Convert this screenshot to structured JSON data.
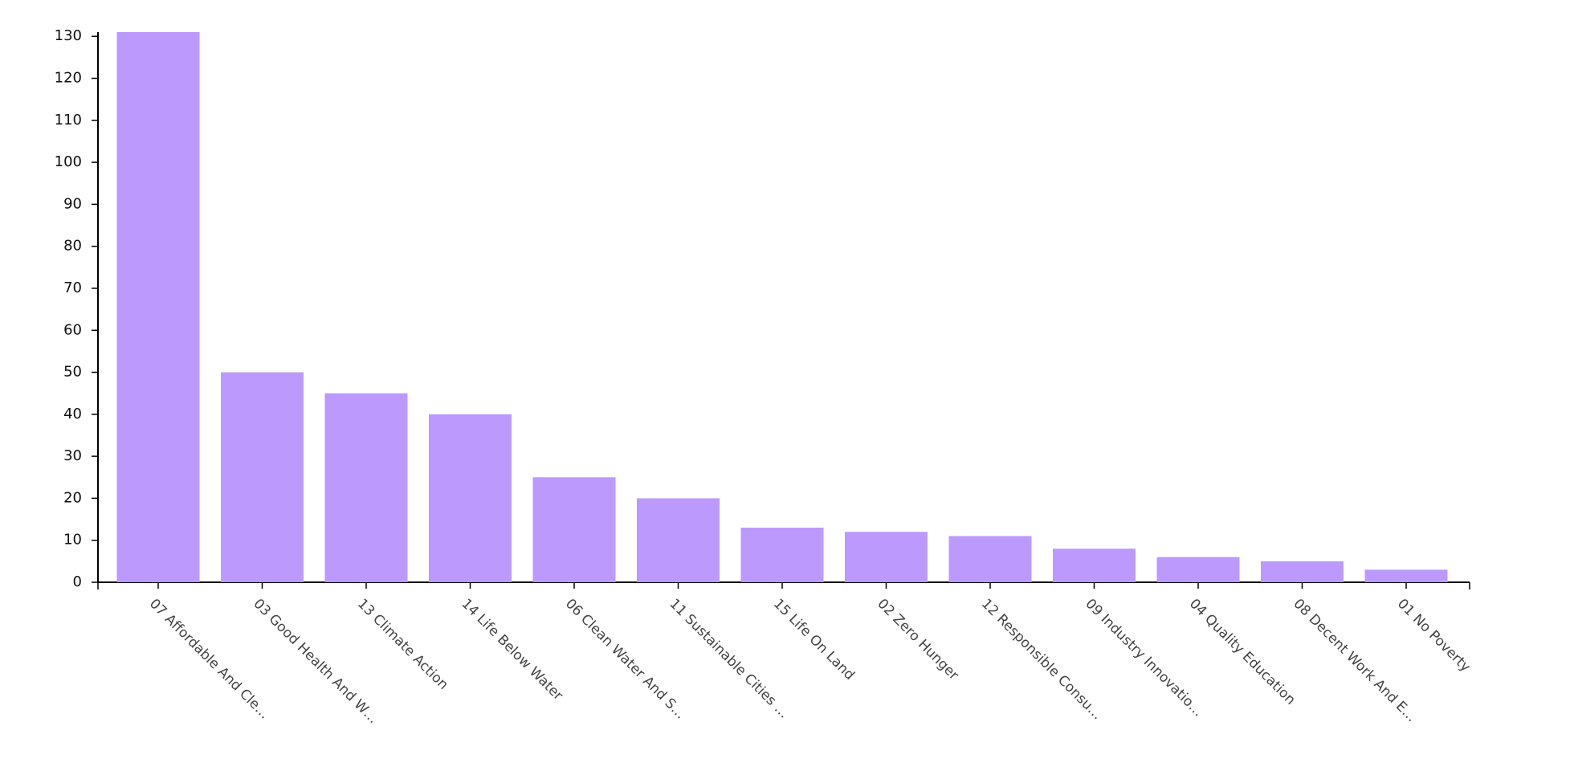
{
  "chart_data": {
    "type": "bar",
    "categories": [
      "07 Affordable And Cle…",
      "03 Good Health And W…",
      "13 Climate Action",
      "14 Life Below Water",
      "06 Clean Water And S…",
      "11 Sustainable Cities …",
      "15 Life On Land",
      "02 Zero Hunger",
      "12 Responsible Consu…",
      "09 Industry Innovatio…",
      "04 Quality Education",
      "08 Decent Work And E…",
      "01 No Poverty"
    ],
    "values": [
      131,
      50,
      45,
      40,
      25,
      20,
      13,
      12,
      11,
      8,
      6,
      5,
      3
    ],
    "color": "#bb99fd",
    "ylim": [
      0,
      131
    ],
    "yticks": [
      0,
      10,
      20,
      30,
      40,
      50,
      60,
      70,
      80,
      90,
      100,
      110,
      120,
      130
    ]
  }
}
